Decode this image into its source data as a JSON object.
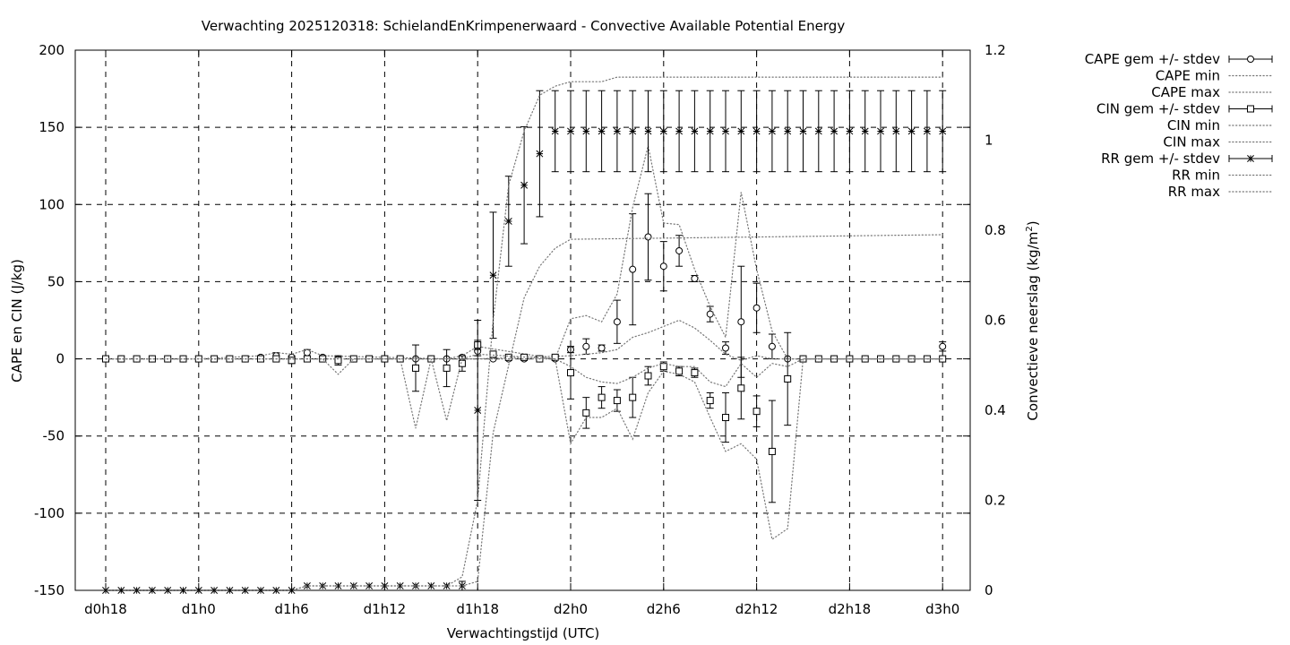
{
  "chart_data": {
    "type": "line",
    "title": "Verwachting 2025120318: SchielandEnKrimpenerwaard - Convective Available Potential Energy",
    "xlabel": "Verwachtingstijd (UTC)",
    "ylabel": "CAPE en CIN (J/kg)",
    "y2label_main": "Convectieve neerslag (kg/m",
    "y2label_sup": "2",
    "y2label_end": ")",
    "xlim": [
      -1,
      54
    ],
    "ylim": [
      -150,
      200
    ],
    "y2lim": [
      0,
      1.2
    ],
    "grid": true,
    "legend_position": "outside-right",
    "x_ticks": [
      {
        "x": 0,
        "label": "d0h18"
      },
      {
        "x": 6,
        "label": "d1h0"
      },
      {
        "x": 12,
        "label": "d1h6"
      },
      {
        "x": 18,
        "label": "d1h12"
      },
      {
        "x": 24,
        "label": "d1h18"
      },
      {
        "x": 30,
        "label": "d2h0"
      },
      {
        "x": 36,
        "label": "d2h6"
      },
      {
        "x": 42,
        "label": "d2h12"
      },
      {
        "x": 48,
        "label": "d2h18"
      },
      {
        "x": 54,
        "label": "d3h0"
      }
    ],
    "y_ticks": [
      "-150",
      "-100",
      "-50",
      "0",
      "50",
      "100",
      "150",
      "200"
    ],
    "y2_ticks": [
      "0",
      "0.2",
      "0.4",
      "0.6",
      "0.8",
      "1",
      "1.2"
    ],
    "series": [
      {
        "name": "CAPE gem +/- stdev",
        "axis": "y",
        "marker": "circle",
        "style": "errorbars",
        "x": [
          0,
          1,
          2,
          3,
          4,
          5,
          6,
          7,
          8,
          9,
          10,
          11,
          12,
          13,
          14,
          15,
          16,
          17,
          18,
          19,
          20,
          21,
          22,
          23,
          24,
          25,
          26,
          27,
          28,
          29,
          30,
          31,
          32,
          33,
          34,
          35,
          36,
          37,
          38,
          39,
          40,
          41,
          42,
          43,
          44,
          45,
          46,
          47,
          48,
          49,
          50,
          51,
          52,
          53,
          54
        ],
        "y": [
          0,
          0,
          0,
          0,
          0,
          0,
          0,
          0,
          0,
          0,
          1,
          2,
          1,
          4,
          1,
          0,
          0,
          0,
          0,
          0,
          0,
          0,
          0,
          1,
          5,
          0,
          0,
          0,
          0,
          0,
          6,
          8,
          7,
          24,
          58,
          79,
          60,
          70,
          52,
          29,
          7,
          24,
          33,
          8,
          0,
          0,
          0,
          0,
          0,
          0,
          0,
          0,
          0,
          0,
          8
        ],
        "err": [
          0,
          0,
          0,
          0,
          0,
          0,
          0,
          0,
          0,
          0,
          1,
          2,
          1,
          2,
          1,
          0,
          0,
          0,
          0,
          0,
          0,
          0,
          0,
          1,
          3,
          0,
          0,
          0,
          0,
          0,
          2,
          5,
          2,
          14,
          36,
          28,
          16,
          10,
          2,
          5,
          4,
          36,
          16,
          8,
          0,
          0,
          0,
          0,
          0,
          0,
          0,
          0,
          0,
          0,
          3
        ]
      },
      {
        "name": "CAPE min",
        "axis": "y",
        "style": "dotted",
        "x": [
          0,
          6,
          12,
          18,
          23,
          24,
          30,
          31,
          32,
          33,
          34,
          35,
          36,
          37,
          38,
          39,
          40,
          41,
          42,
          43,
          44,
          45,
          54
        ],
        "y": [
          0,
          0,
          0,
          0,
          0,
          0,
          2,
          3,
          4,
          6,
          14,
          17,
          21,
          25,
          20,
          12,
          3,
          -1,
          2,
          0,
          0,
          0,
          0
        ]
      },
      {
        "name": "CAPE max",
        "axis": "y",
        "style": "dotted",
        "x": [
          0,
          6,
          10,
          11,
          12,
          13,
          14,
          22,
          23,
          24,
          29,
          30,
          31,
          32,
          33,
          34,
          35,
          36,
          37,
          38,
          39,
          40,
          41,
          42,
          43,
          44,
          45,
          54
        ],
        "y": [
          0,
          0,
          2,
          4,
          3,
          6,
          2,
          0,
          2,
          8,
          0,
          26,
          28,
          24,
          42,
          98,
          138,
          88,
          87,
          58,
          34,
          14,
          108,
          58,
          18,
          0,
          0,
          0
        ]
      },
      {
        "name": "CIN gem +/- stdev",
        "axis": "y",
        "marker": "square",
        "style": "errorbars",
        "x": [
          0,
          1,
          2,
          3,
          4,
          5,
          6,
          7,
          8,
          9,
          10,
          11,
          12,
          13,
          14,
          15,
          16,
          17,
          18,
          19,
          20,
          21,
          22,
          23,
          24,
          25,
          26,
          27,
          28,
          29,
          30,
          31,
          32,
          33,
          34,
          35,
          36,
          37,
          38,
          39,
          40,
          41,
          42,
          43,
          44,
          45,
          46,
          47,
          48,
          49,
          50,
          51,
          52,
          53,
          54
        ],
        "y": [
          0,
          0,
          0,
          0,
          0,
          0,
          0,
          0,
          0,
          0,
          0,
          0,
          -1,
          0,
          0,
          -1,
          0,
          0,
          0,
          0,
          -6,
          0,
          -6,
          -3,
          9,
          3,
          1,
          1,
          0,
          1,
          -9,
          -35,
          -25,
          -27,
          -25,
          -11,
          -5,
          -8,
          -9,
          -27,
          -38,
          -19,
          -34,
          -60,
          -13,
          0,
          0,
          0,
          0,
          0,
          0,
          0,
          0,
          0,
          0
        ],
        "err": [
          0,
          0,
          0,
          0,
          0,
          0,
          0,
          0,
          0,
          0,
          0,
          0,
          2,
          0,
          0,
          3,
          0,
          0,
          0,
          0,
          15,
          0,
          12,
          5,
          3,
          2,
          1,
          1,
          0,
          1,
          17,
          10,
          7,
          7,
          13,
          6,
          3,
          3,
          3,
          5,
          16,
          20,
          10,
          33,
          30,
          0,
          0,
          0,
          0,
          0,
          0,
          0,
          0,
          0,
          0
        ]
      },
      {
        "name": "CIN min",
        "axis": "y",
        "style": "dotted",
        "x": [
          0,
          14,
          15,
          16,
          18,
          19,
          20,
          21,
          22,
          23,
          24,
          29,
          30,
          31,
          32,
          33,
          34,
          35,
          36,
          37,
          38,
          39,
          40,
          41,
          42,
          43,
          44,
          45,
          54
        ],
        "y": [
          0,
          0,
          -10,
          0,
          0,
          0,
          -45,
          0,
          -40,
          0,
          0,
          0,
          -55,
          -38,
          -38,
          -32,
          -52,
          -22,
          -8,
          -10,
          -15,
          -38,
          -60,
          -55,
          -65,
          -117,
          -110,
          0,
          0
        ]
      },
      {
        "name": "CIN max",
        "axis": "y",
        "style": "dotted",
        "x": [
          0,
          12,
          15,
          22,
          23,
          24,
          29,
          30,
          31,
          32,
          33,
          34,
          35,
          36,
          37,
          38,
          39,
          40,
          41,
          42,
          43,
          44,
          45,
          54
        ],
        "y": [
          0,
          0,
          0,
          0,
          0,
          3,
          0,
          -5,
          -12,
          -15,
          -16,
          -12,
          -6,
          -3,
          -5,
          -5,
          -15,
          -18,
          -3,
          -12,
          -3,
          -5,
          0,
          0
        ]
      },
      {
        "name": "RR gem +/- stdev",
        "axis": "y2",
        "marker": "star",
        "style": "errorbars",
        "x": [
          0,
          1,
          2,
          3,
          4,
          5,
          6,
          7,
          8,
          9,
          10,
          11,
          12,
          13,
          14,
          15,
          16,
          17,
          18,
          19,
          20,
          21,
          22,
          23,
          24,
          25,
          26,
          27,
          28,
          29,
          30,
          31,
          32,
          33,
          34,
          35,
          36,
          37,
          38,
          39,
          40,
          41,
          42,
          43,
          44,
          45,
          46,
          47,
          48,
          49,
          50,
          51,
          52,
          53,
          54
        ],
        "y": [
          0,
          0,
          0,
          0,
          0,
          0,
          0,
          0,
          0,
          0,
          0,
          0,
          0,
          0.01,
          0.01,
          0.01,
          0.01,
          0.01,
          0.01,
          0.01,
          0.01,
          0.01,
          0.01,
          0.01,
          0.4,
          0.7,
          0.82,
          0.9,
          0.97,
          1.02,
          1.02,
          1.02,
          1.02,
          1.02,
          1.02,
          1.02,
          1.02,
          1.02,
          1.02,
          1.02,
          1.02,
          1.02,
          1.02,
          1.02,
          1.02,
          1.02,
          1.02,
          1.02,
          1.02,
          1.02,
          1.02,
          1.02,
          1.02,
          1.02,
          1.02
        ],
        "err": [
          0,
          0,
          0,
          0,
          0,
          0,
          0,
          0,
          0,
          0,
          0,
          0,
          0,
          0,
          0,
          0,
          0,
          0,
          0,
          0,
          0,
          0,
          0,
          0.01,
          0.2,
          0.14,
          0.1,
          0.13,
          0.14,
          0.09,
          0.09,
          0.09,
          0.09,
          0.09,
          0.09,
          0.09,
          0.09,
          0.09,
          0.09,
          0.09,
          0.09,
          0.09,
          0.09,
          0.09,
          0.09,
          0.09,
          0.09,
          0.09,
          0.09,
          0.09,
          0.09,
          0.09,
          0.09,
          0.09,
          0.09
        ]
      },
      {
        "name": "RR min",
        "axis": "y2",
        "style": "dotted",
        "x": [
          0,
          12,
          13,
          22,
          23,
          24,
          25,
          26,
          27,
          28,
          29,
          30,
          54
        ],
        "y": [
          0,
          0,
          0.01,
          0.01,
          0.01,
          0.02,
          0.35,
          0.5,
          0.65,
          0.72,
          0.76,
          0.78,
          0.79
        ]
      },
      {
        "name": "RR max",
        "axis": "y2",
        "style": "dotted",
        "x": [
          0,
          12,
          13,
          22,
          23,
          24,
          25,
          26,
          27,
          28,
          29,
          30,
          32,
          33,
          54
        ],
        "y": [
          0,
          0,
          0.01,
          0.01,
          0.03,
          0.2,
          0.6,
          0.9,
          1.02,
          1.1,
          1.12,
          1.13,
          1.13,
          1.14,
          1.14
        ]
      }
    ]
  }
}
